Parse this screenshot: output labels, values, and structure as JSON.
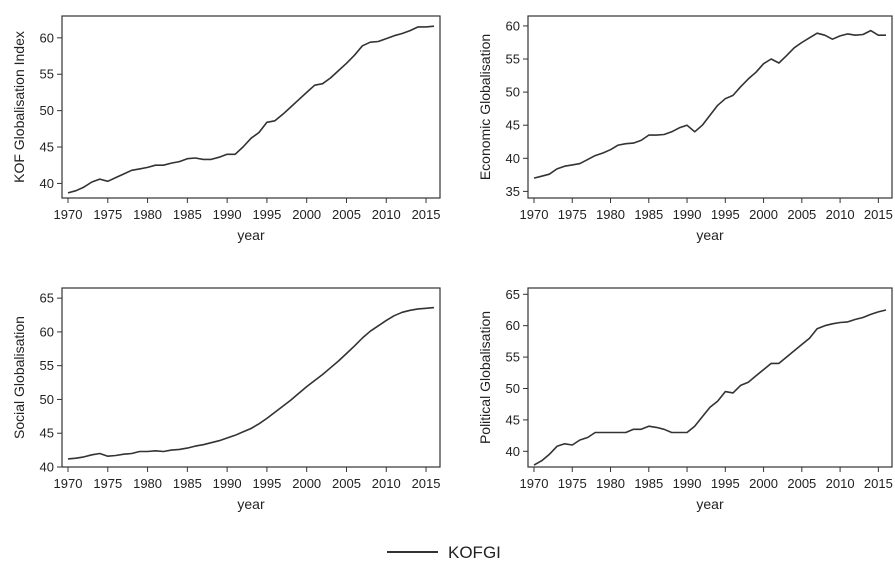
{
  "chart_data": [
    {
      "type": "line",
      "title": "",
      "xlabel": "year",
      "ylabel": "KOF Globalisation Index",
      "xlim": [
        1970,
        2016
      ],
      "ylim": [
        38,
        63
      ],
      "xticks": [
        "1970",
        "1975",
        "1980",
        "1985",
        "1990",
        "1995",
        "2000",
        "2005",
        "2010",
        "2015"
      ],
      "yticks": [
        "40",
        "45",
        "50",
        "55",
        "60"
      ],
      "grid": false,
      "series": [
        {
          "name": "KOFGI",
          "x": [
            1970,
            1971,
            1972,
            1973,
            1974,
            1975,
            1976,
            1977,
            1978,
            1979,
            1980,
            1981,
            1982,
            1983,
            1984,
            1985,
            1986,
            1987,
            1988,
            1989,
            1990,
            1991,
            1992,
            1993,
            1994,
            1995,
            1996,
            1997,
            1998,
            1999,
            2000,
            2001,
            2002,
            2003,
            2004,
            2005,
            2006,
            2007,
            2008,
            2009,
            2010,
            2011,
            2012,
            2013,
            2014,
            2015,
            2016
          ],
          "y": [
            38.7,
            39.0,
            39.5,
            40.2,
            40.6,
            40.3,
            40.8,
            41.3,
            41.8,
            42.0,
            42.2,
            42.5,
            42.5,
            42.8,
            43.0,
            43.4,
            43.5,
            43.3,
            43.3,
            43.6,
            44.0,
            44.0,
            45.0,
            46.2,
            47.0,
            48.4,
            48.6,
            49.5,
            50.5,
            51.5,
            52.5,
            53.5,
            53.7,
            54.5,
            55.5,
            56.5,
            57.6,
            58.9,
            59.4,
            59.5,
            59.9,
            60.3,
            60.6,
            61.0,
            61.5,
            61.5,
            61.6
          ]
        }
      ]
    },
    {
      "type": "line",
      "title": "",
      "xlabel": "year",
      "ylabel": "Economic Globalisation",
      "xlim": [
        1970,
        2016
      ],
      "ylim": [
        34,
        61.5
      ],
      "xticks": [
        "1970",
        "1975",
        "1980",
        "1985",
        "1990",
        "1995",
        "2000",
        "2005",
        "2010",
        "2015"
      ],
      "yticks": [
        "35",
        "40",
        "45",
        "50",
        "55",
        "60"
      ],
      "grid": false,
      "series": [
        {
          "name": "KOFGI",
          "x": [
            1970,
            1971,
            1972,
            1973,
            1974,
            1975,
            1976,
            1977,
            1978,
            1979,
            1980,
            1981,
            1982,
            1983,
            1984,
            1985,
            1986,
            1987,
            1988,
            1989,
            1990,
            1991,
            1992,
            1993,
            1994,
            1995,
            1996,
            1997,
            1998,
            1999,
            2000,
            2001,
            2002,
            2003,
            2004,
            2005,
            2006,
            2007,
            2008,
            2009,
            2010,
            2011,
            2012,
            2013,
            2014,
            2015,
            2016
          ],
          "y": [
            37.0,
            37.3,
            37.6,
            38.4,
            38.8,
            39.0,
            39.2,
            39.8,
            40.4,
            40.8,
            41.3,
            42.0,
            42.2,
            42.3,
            42.7,
            43.5,
            43.5,
            43.6,
            44.0,
            44.6,
            45.0,
            44.0,
            45.0,
            46.5,
            48.0,
            49.0,
            49.5,
            50.8,
            52.0,
            53.0,
            54.3,
            55.0,
            54.4,
            55.5,
            56.7,
            57.5,
            58.2,
            58.9,
            58.6,
            58.0,
            58.5,
            58.8,
            58.6,
            58.7,
            59.3,
            58.6,
            58.6
          ]
        }
      ]
    },
    {
      "type": "line",
      "title": "",
      "xlabel": "year",
      "ylabel": "Social Globalisation",
      "xlim": [
        1970,
        2016
      ],
      "ylim": [
        40,
        66.5
      ],
      "xticks": [
        "1970",
        "1975",
        "1980",
        "1985",
        "1990",
        "1995",
        "2000",
        "2005",
        "2010",
        "2015"
      ],
      "yticks": [
        "40",
        "45",
        "50",
        "55",
        "60",
        "65"
      ],
      "grid": false,
      "series": [
        {
          "name": "KOFGI",
          "x": [
            1970,
            1971,
            1972,
            1973,
            1974,
            1975,
            1976,
            1977,
            1978,
            1979,
            1980,
            1981,
            1982,
            1983,
            1984,
            1985,
            1986,
            1987,
            1988,
            1989,
            1990,
            1991,
            1992,
            1993,
            1994,
            1995,
            1996,
            1997,
            1998,
            1999,
            2000,
            2001,
            2002,
            2003,
            2004,
            2005,
            2006,
            2007,
            2008,
            2009,
            2010,
            2011,
            2012,
            2013,
            2014,
            2015,
            2016
          ],
          "y": [
            41.2,
            41.3,
            41.5,
            41.8,
            42.0,
            41.6,
            41.7,
            41.9,
            42.0,
            42.3,
            42.3,
            42.4,
            42.3,
            42.5,
            42.6,
            42.8,
            43.1,
            43.3,
            43.6,
            43.9,
            44.3,
            44.7,
            45.2,
            45.7,
            46.4,
            47.2,
            48.1,
            49.0,
            49.9,
            50.9,
            51.9,
            52.8,
            53.7,
            54.7,
            55.7,
            56.8,
            57.9,
            59.1,
            60.1,
            60.9,
            61.7,
            62.4,
            62.9,
            63.2,
            63.4,
            63.5,
            63.6
          ]
        }
      ]
    },
    {
      "type": "line",
      "title": "",
      "xlabel": "year",
      "ylabel": "Political Globalisation",
      "xlim": [
        1970,
        2016
      ],
      "ylim": [
        37.5,
        66
      ],
      "xticks": [
        "1970",
        "1975",
        "1980",
        "1985",
        "1990",
        "1995",
        "2000",
        "2005",
        "2010",
        "2015"
      ],
      "yticks": [
        "40",
        "45",
        "50",
        "55",
        "60",
        "65"
      ],
      "grid": false,
      "series": [
        {
          "name": "KOFGI",
          "x": [
            1970,
            1971,
            1972,
            1973,
            1974,
            1975,
            1976,
            1977,
            1978,
            1979,
            1980,
            1981,
            1982,
            1983,
            1984,
            1985,
            1986,
            1987,
            1988,
            1989,
            1990,
            1991,
            1992,
            1993,
            1994,
            1995,
            1996,
            1997,
            1998,
            1999,
            2000,
            2001,
            2002,
            2003,
            2004,
            2005,
            2006,
            2007,
            2008,
            2009,
            2010,
            2011,
            2012,
            2013,
            2014,
            2015,
            2016
          ],
          "y": [
            37.8,
            38.5,
            39.5,
            40.8,
            41.2,
            41.0,
            41.8,
            42.2,
            43.0,
            43.0,
            43.0,
            43.0,
            43.0,
            43.5,
            43.5,
            44.0,
            43.8,
            43.5,
            43.0,
            43.0,
            43.0,
            44.0,
            45.5,
            47.0,
            48.0,
            49.5,
            49.3,
            50.5,
            51.0,
            52.0,
            53.0,
            54.0,
            54.0,
            55.0,
            56.0,
            57.0,
            58.0,
            59.5,
            60.0,
            60.3,
            60.5,
            60.6,
            61.0,
            61.3,
            61.8,
            62.2,
            62.5
          ]
        }
      ]
    }
  ],
  "legend": {
    "label": "KOFGI",
    "line_color": "#333333"
  },
  "colors": {
    "line": "#333333",
    "axis": "#333333",
    "frame": "#333333"
  }
}
